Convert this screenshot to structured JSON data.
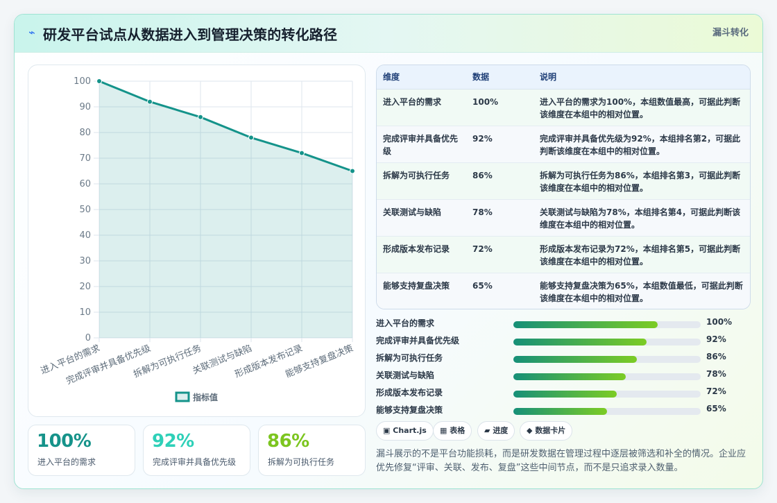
{
  "header": {
    "icon": "bolt-icon",
    "title": "研发平台试点从数据进入到管理决策的转化路径",
    "tag": "漏斗转化"
  },
  "chart_data": {
    "type": "area",
    "categories": [
      "进入平台的需求",
      "完成评审并具备优先级",
      "拆解为可执行任务",
      "关联测试与缺陷",
      "形成版本发布记录",
      "能够支持复盘决策"
    ],
    "series": [
      {
        "name": "指标值",
        "values": [
          100,
          92,
          86,
          78,
          72,
          65
        ]
      }
    ],
    "ylim": [
      0,
      100
    ],
    "yticks": [
      0,
      10,
      20,
      30,
      40,
      50,
      60,
      70,
      80,
      90,
      100
    ],
    "grid": true,
    "legend": "bottom-center",
    "color": "#14938a"
  },
  "kpis": [
    {
      "value": "100%",
      "label": "进入平台的需求",
      "color": "#16938a"
    },
    {
      "value": "92%",
      "label": "完成评审并具备优先级",
      "color": "#2ed0b8"
    },
    {
      "value": "86%",
      "label": "拆解为可执行任务",
      "color": "#7cc51f"
    }
  ],
  "table": {
    "headers": [
      "维度",
      "数据",
      "说明"
    ],
    "rows": [
      {
        "dim": "进入平台的需求",
        "data": "100%",
        "desc": "进入平台的需求为100%，本组数值最高，可据此判断该维度在本组中的相对位置。"
      },
      {
        "dim": "完成评审并具备优先级",
        "data": "92%",
        "desc": "完成评审并具备优先级为92%，本组排名第2，可据此判断该维度在本组中的相对位置。"
      },
      {
        "dim": "拆解为可执行任务",
        "data": "86%",
        "desc": "拆解为可执行任务为86%，本组排名第3，可据此判断该维度在本组中的相对位置。"
      },
      {
        "dim": "关联测试与缺陷",
        "data": "78%",
        "desc": "关联测试与缺陷为78%，本组排名第4，可据此判断该维度在本组中的相对位置。"
      },
      {
        "dim": "形成版本发布记录",
        "data": "72%",
        "desc": "形成版本发布记录为72%，本组排名第5，可据此判断该维度在本组中的相对位置。"
      },
      {
        "dim": "能够支持复盘决策",
        "data": "65%",
        "desc": "能够支持复盘决策为65%，本组数值最低，可据此判断该维度在本组中的相对位置。"
      }
    ]
  },
  "progress": [
    {
      "label": "进入平台的需求",
      "value": "100%",
      "fraction": 0.77
    },
    {
      "label": "完成评审并具备优先级",
      "value": "92%",
      "fraction": 0.71
    },
    {
      "label": "拆解为可执行任务",
      "value": "86%",
      "fraction": 0.66
    },
    {
      "label": "关联测试与缺陷",
      "value": "78%",
      "fraction": 0.6
    },
    {
      "label": "形成版本发布记录",
      "value": "72%",
      "fraction": 0.55
    },
    {
      "label": "能够支持复盘决策",
      "value": "65%",
      "fraction": 0.5
    }
  ],
  "chips": [
    {
      "icon": "▣",
      "label": "Chart.js"
    },
    {
      "icon": "▦",
      "label": "表格"
    },
    {
      "icon": "▰",
      "label": "进度"
    },
    {
      "icon": "◆",
      "label": "数据卡片"
    }
  ],
  "note": "漏斗展示的不是平台功能损耗，而是研发数据在管理过程中逐层被筛选和补全的情况。企业应优先修复“评审、关联、发布、复盘”这些中间节点，而不是只追求录入数量。"
}
